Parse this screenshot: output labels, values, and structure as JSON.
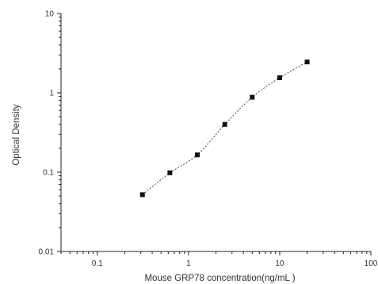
{
  "chart_data": {
    "type": "scatter",
    "title": "",
    "xlabel": "Mouse GRP78 concentration(ng/mL )",
    "ylabel": "Optical Density",
    "x_scale": "log",
    "y_scale": "log",
    "xlim": [
      0.04,
      100
    ],
    "ylim": [
      0.01,
      10
    ],
    "x_ticks": [
      {
        "value": 0.1,
        "label": "0.1"
      },
      {
        "value": 1,
        "label": "1"
      },
      {
        "value": 10,
        "label": "10"
      },
      {
        "value": 100,
        "label": "100"
      }
    ],
    "y_ticks": [
      {
        "value": 0.01,
        "label": "0.01"
      },
      {
        "value": 0.1,
        "label": "0.1"
      },
      {
        "value": 1,
        "label": "1"
      },
      {
        "value": 10,
        "label": "10"
      }
    ],
    "grid": false,
    "legend": "none",
    "series": [
      {
        "x": [
          0.3125,
          0.625,
          1.25,
          2.5,
          5,
          10,
          20
        ],
        "y": [
          0.052,
          0.098,
          0.165,
          0.4,
          0.88,
          1.55,
          2.45
        ],
        "marker": "square",
        "fit_line": "dotted",
        "color": "#111111"
      }
    ]
  }
}
